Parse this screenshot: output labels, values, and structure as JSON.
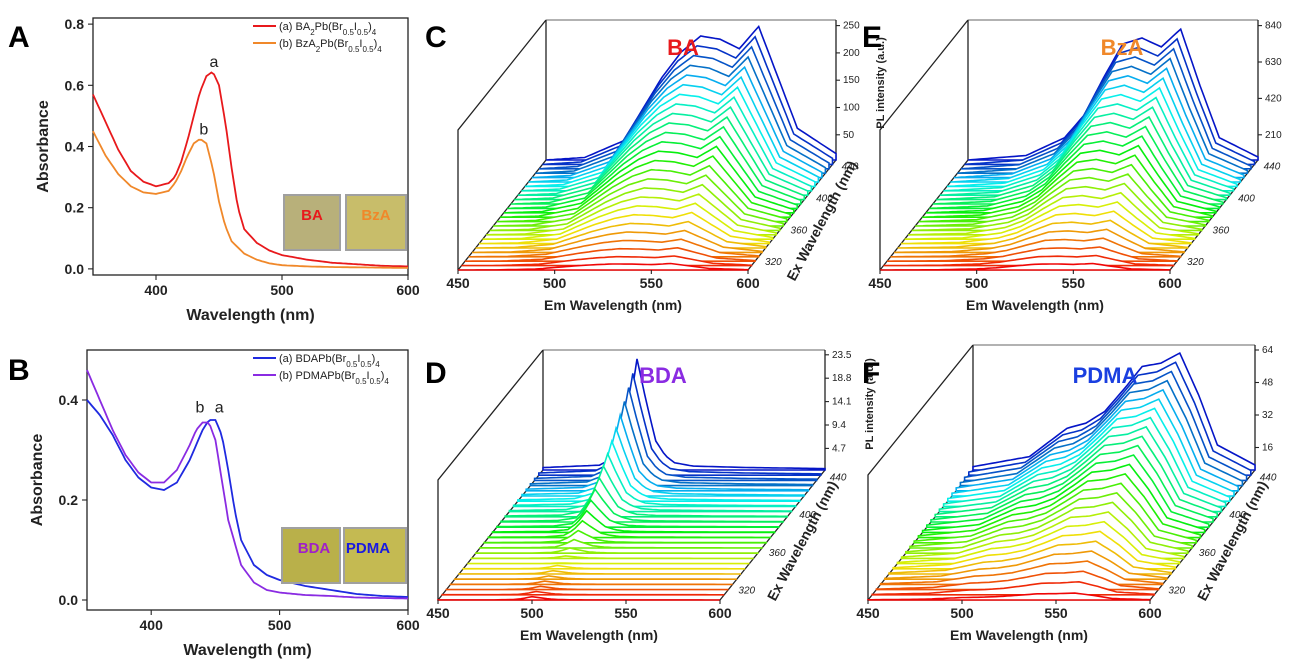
{
  "chart_data": [
    {
      "panel": "A",
      "type": "line",
      "xlabel": "Wavelength (nm)",
      "ylabel": "Absorbance",
      "xlim": [
        350,
        600
      ],
      "ylim": [
        -0.02,
        0.82
      ],
      "xticks": [
        400,
        500,
        600
      ],
      "yticks": [
        "0.0",
        "0.2",
        "0.4",
        "0.6",
        "0.8"
      ],
      "legend_position": "top-right",
      "series": [
        {
          "name": "(a) BA2Pb(Br0.5I0.5)4",
          "label": "a",
          "color": "#e8191c",
          "x": [
            350,
            360,
            370,
            380,
            390,
            400,
            410,
            415,
            420,
            425,
            430,
            435,
            440,
            445,
            450,
            455,
            460,
            465,
            470,
            480,
            490,
            500,
            520,
            540,
            560,
            580,
            600
          ],
          "y": [
            0.57,
            0.48,
            0.39,
            0.32,
            0.285,
            0.27,
            0.28,
            0.3,
            0.35,
            0.42,
            0.5,
            0.58,
            0.63,
            0.645,
            0.6,
            0.48,
            0.33,
            0.2,
            0.13,
            0.085,
            0.06,
            0.045,
            0.03,
            0.02,
            0.015,
            0.01,
            0.008
          ]
        },
        {
          "name": "(b) BzA2Pb(Br0.5I0.5)4",
          "label": "b",
          "color": "#f0882a",
          "x": [
            350,
            360,
            370,
            380,
            390,
            400,
            410,
            415,
            420,
            425,
            430,
            435,
            440,
            445,
            450,
            455,
            460,
            470,
            480,
            490,
            500,
            520,
            540,
            560,
            580,
            600
          ],
          "y": [
            0.45,
            0.37,
            0.31,
            0.27,
            0.25,
            0.245,
            0.255,
            0.28,
            0.32,
            0.37,
            0.41,
            0.425,
            0.41,
            0.33,
            0.22,
            0.14,
            0.09,
            0.05,
            0.03,
            0.018,
            0.012,
            0.008,
            0.006,
            0.005,
            0.004,
            0.003
          ]
        }
      ],
      "annotations": [
        "a",
        "b"
      ],
      "films": [
        {
          "text": "BA",
          "color": "#e8191c"
        },
        {
          "text": "BzA",
          "color": "#f0882a"
        }
      ]
    },
    {
      "panel": "B",
      "type": "line",
      "xlabel": "Wavelength (nm)",
      "ylabel": "Absorbance",
      "xlim": [
        350,
        600
      ],
      "ylim": [
        -0.02,
        0.5
      ],
      "xticks": [
        400,
        500,
        600
      ],
      "yticks": [
        "0.0",
        "0.2",
        "0.4"
      ],
      "legend_position": "top-right",
      "series": [
        {
          "name": "(a) BDAPb(Br0.5I0.5)4",
          "label": "a",
          "color": "#1f2ae0",
          "x": [
            350,
            360,
            370,
            380,
            390,
            400,
            410,
            420,
            430,
            440,
            445,
            450,
            455,
            460,
            465,
            470,
            480,
            490,
            500,
            520,
            540,
            560,
            580,
            600
          ],
          "y": [
            0.4,
            0.37,
            0.33,
            0.28,
            0.245,
            0.225,
            0.22,
            0.235,
            0.28,
            0.34,
            0.36,
            0.36,
            0.33,
            0.26,
            0.18,
            0.12,
            0.07,
            0.05,
            0.04,
            0.028,
            0.02,
            0.012,
            0.008,
            0.006
          ]
        },
        {
          "name": "(b) PDMAPb(Br0.5I0.5)4",
          "label": "b",
          "color": "#8a2be2",
          "x": [
            350,
            360,
            370,
            380,
            390,
            400,
            410,
            420,
            430,
            435,
            440,
            445,
            450,
            455,
            460,
            470,
            480,
            490,
            500,
            520,
            540,
            560,
            580,
            600
          ],
          "y": [
            0.46,
            0.4,
            0.34,
            0.29,
            0.255,
            0.235,
            0.235,
            0.26,
            0.31,
            0.34,
            0.355,
            0.355,
            0.32,
            0.24,
            0.16,
            0.07,
            0.035,
            0.02,
            0.015,
            0.01,
            0.008,
            0.005,
            0.004,
            0.003
          ]
        }
      ],
      "annotations": [
        "b",
        "a"
      ],
      "films": [
        {
          "text": "BDA",
          "color": "#a020c8"
        },
        {
          "text": "PDMA",
          "color": "#1a1ae0"
        }
      ]
    },
    {
      "panel": "C",
      "type": "line",
      "title": "BA",
      "title_color": "#e8191c",
      "xlabel": "Em Wavelength (nm)",
      "ylabel": "Ex Wavelength (nm)",
      "zlabel": "PL intensity (a.u.)",
      "xlim": [
        450,
        600
      ],
      "xticks": [
        450,
        500,
        550,
        600
      ],
      "yticks": [
        320,
        360,
        400,
        440
      ],
      "zticks": [
        50,
        100,
        150,
        200,
        250
      ],
      "z_profile_x": [
        450,
        470,
        490,
        500,
        510,
        520,
        530,
        540,
        550,
        560,
        570,
        580,
        600
      ],
      "z_profile_y": [
        0,
        4,
        30,
        80,
        130,
        170,
        195,
        190,
        175,
        210,
        130,
        50,
        10
      ]
    },
    {
      "panel": "D",
      "type": "line",
      "title": "BDA",
      "title_color": "#8a2be2",
      "xlabel": "Em Wavelength (nm)",
      "ylabel": "Ex Wavelength (nm)",
      "zlabel": "PL intensity (a.u.)",
      "xlim": [
        450,
        600
      ],
      "xticks": [
        450,
        500,
        550,
        600
      ],
      "yticks": [
        320,
        360,
        400,
        440
      ],
      "zticks": [
        "4.7",
        "9.4",
        "14.1",
        "18.8",
        "23.5"
      ],
      "z_profile_x": [
        450,
        480,
        490,
        495,
        500,
        505,
        510,
        515,
        520,
        530,
        560,
        600
      ],
      "z_profile_y": [
        0.5,
        1,
        3,
        10,
        23,
        14,
        6,
        3,
        1.5,
        0.8,
        0.5,
        0.3
      ]
    },
    {
      "panel": "E",
      "type": "line",
      "title": "BzA",
      "title_color": "#f0882a",
      "xlabel": "Em Wavelength (nm)",
      "ylabel": "",
      "zlabel": "PL intensity (a.u.)",
      "xlim": [
        450,
        600
      ],
      "xticks": [
        450,
        500,
        550,
        600
      ],
      "yticks": [
        320,
        360,
        400,
        440
      ],
      "zticks": [
        210,
        420,
        630,
        840
      ],
      "z_profile_x": [
        450,
        480,
        500,
        510,
        520,
        530,
        540,
        550,
        560,
        570,
        580,
        600
      ],
      "z_profile_y": [
        0,
        30,
        150,
        300,
        550,
        780,
        820,
        760,
        880,
        500,
        150,
        20
      ]
    },
    {
      "panel": "F",
      "type": "line",
      "title": "PDMA",
      "title_color": "#1a3fe0",
      "xlabel": "Em Wavelength (nm)",
      "ylabel": "Ex Wavelength (nm)",
      "zlabel": "PL intensity (a.u.)",
      "xlim": [
        450,
        600
      ],
      "xticks": [
        450,
        500,
        550,
        600
      ],
      "yticks": [
        320,
        360,
        400,
        440
      ],
      "zticks": [
        16,
        32,
        48,
        64
      ],
      "z_profile_x": [
        450,
        480,
        500,
        510,
        520,
        530,
        540,
        550,
        560,
        570,
        580,
        600
      ],
      "z_profile_y": [
        2,
        8,
        25,
        28,
        35,
        48,
        62,
        64,
        70,
        45,
        15,
        3
      ]
    }
  ],
  "panels": {
    "A": {
      "letter": "A",
      "xlabel": "Wavelength (nm)",
      "ylabel": "Absorbance",
      "legend": [
        {
          "text": "(a) BA",
          "sub1": "2",
          "mid": "Pb(Br",
          "sub2": "0.5",
          "i": "I",
          "sub3": "0.5",
          "end": ")",
          "sub4": "4"
        },
        {
          "text": "(b) BzA",
          "sub1": "2",
          "mid": "Pb(Br",
          "sub2": "0.5",
          "i": "I",
          "sub3": "0.5",
          "end": ")",
          "sub4": "4"
        }
      ],
      "peak_a": "a",
      "peak_b": "b",
      "film1": "BA",
      "film2": "BzA"
    },
    "B": {
      "letter": "B",
      "xlabel": "Wavelength (nm)",
      "ylabel": "Absorbance",
      "legend": [
        {
          "text": "(a) BDAPb(Br",
          "sub2": "0.5",
          "i": "I",
          "sub3": "0.5",
          "end": ")",
          "sub4": "4"
        },
        {
          "text": "(b) PDMAPb(Br",
          "sub2": "0.5",
          "i": "I",
          "sub3": "0.5",
          "end": ")",
          "sub4": "4"
        }
      ],
      "peak_b": "b",
      "peak_a": "a",
      "film1": "BDA",
      "film2": "PDMA"
    },
    "C": {
      "letter": "C",
      "name": "BA",
      "xlabel": "Em Wavelength (nm)",
      "ylabel": "Ex Wavelength (nm)",
      "zlabel": "PL intensity (a.u.)"
    },
    "D": {
      "letter": "D",
      "name": "BDA",
      "xlabel": "Em Wavelength (nm)",
      "ylabel": "Ex Wavelength (nm)",
      "zlabel": "PL intensity (a.u.)"
    },
    "E": {
      "letter": "E",
      "name": "BzA",
      "xlabel": "Em Wavelength (nm)",
      "zlabel": "PL intensity (a.u.)"
    },
    "F": {
      "letter": "F",
      "name": "PDMA",
      "xlabel": "Em Wavelength (nm)",
      "ylabel": "Ex Wavelength (nm)",
      "zlabel": "PL intensity (a.u.)"
    }
  }
}
